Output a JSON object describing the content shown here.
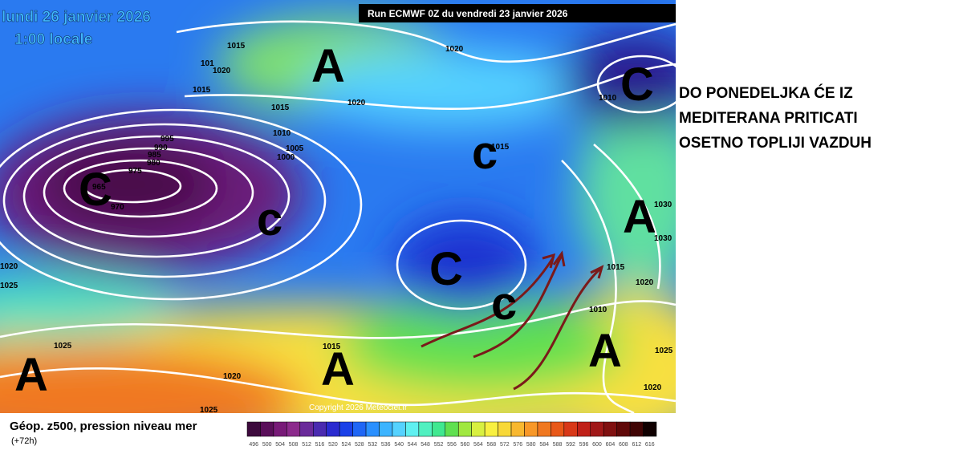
{
  "header": {
    "date": "lundi 26 janvier 2026",
    "time": "1:00 locale",
    "run": "Run ECMWF 0Z du vendredi 23 janvier 2026"
  },
  "map": {
    "pressure_labels": [
      "1015",
      "1020",
      "101",
      "1015",
      "1020",
      "1020",
      "1015",
      "1010",
      "1005",
      "1000",
      "995",
      "990",
      "985",
      "980",
      "975",
      "970",
      "965",
      "1015",
      "1010",
      "1030",
      "1030",
      "1015",
      "1020",
      "1010",
      "1025",
      "1020",
      "1025",
      "1020",
      "1025",
      "1020",
      "1025",
      "1015"
    ],
    "centers": [
      "A",
      "A",
      "A",
      "A",
      "A",
      "C",
      "c",
      "C",
      "c",
      "c",
      "C"
    ],
    "copyright": "Copyright 2026 Meteociel.fr"
  },
  "annotation": [
    "DO PONEDELJKA ĆE IZ",
    "MEDITERANA PRITICATI",
    "OSETNO TOPLIJI VAZDUH"
  ],
  "legend": {
    "title": "Géop. z500, pression niveau mer",
    "step": "(+72h)",
    "scale": [
      496,
      500,
      504,
      508,
      512,
      516,
      520,
      524,
      528,
      532,
      536,
      540,
      544,
      548,
      552,
      556,
      560,
      564,
      568,
      572,
      576,
      580,
      584,
      588,
      592,
      596,
      600,
      604,
      608,
      612,
      616
    ],
    "colors": [
      "#3d0a3d",
      "#5a0f5a",
      "#781a78",
      "#8c2a8c",
      "#6a2a9a",
      "#4a2ab0",
      "#2a2ad0",
      "#1a40e8",
      "#1f66f5",
      "#2a90ff",
      "#3cb4ff",
      "#55d2ff",
      "#5ff0f0",
      "#50f0c0",
      "#40e890",
      "#60e050",
      "#a0e840",
      "#d8f040",
      "#f8f040",
      "#f8d838",
      "#f8b830",
      "#f89828",
      "#f07820",
      "#e85818",
      "#d83818",
      "#c02018",
      "#a01818",
      "#801010",
      "#600808",
      "#400404",
      "#100000"
    ]
  }
}
